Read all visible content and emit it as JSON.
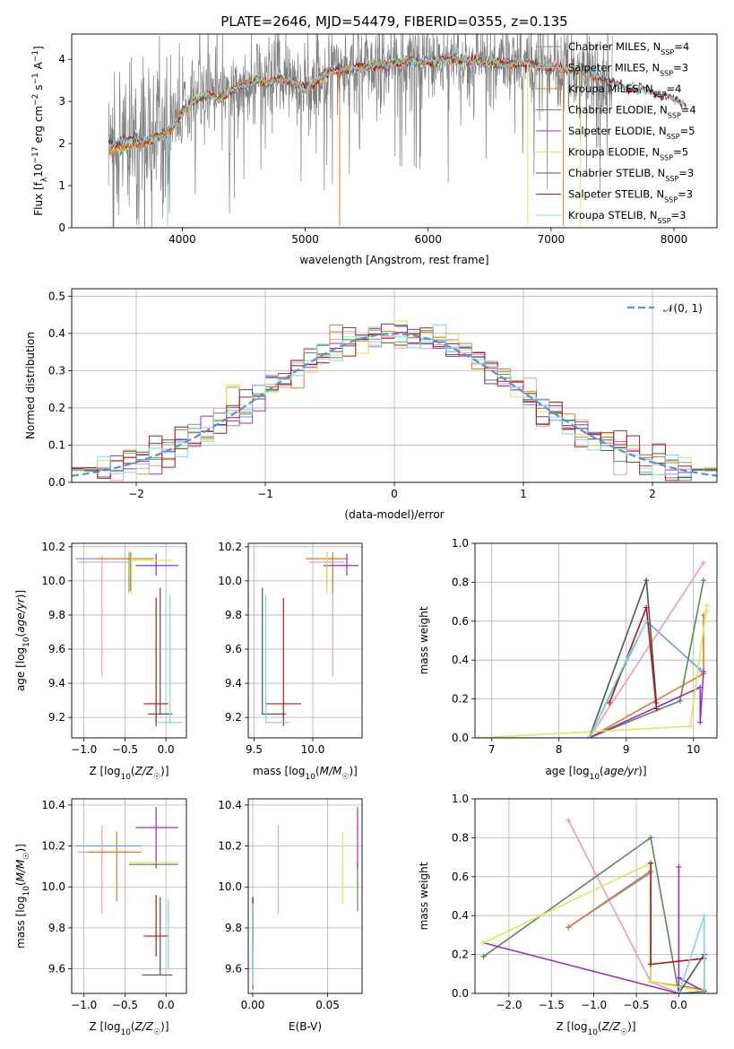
{
  "figure_title": "PLATE=2646, MJD=54479, FIBERID=0355, z=0.135",
  "colors": {
    "Chabrier MILES": "#6f9be0",
    "Salpeter MILES": "#f09bb0",
    "Kroupa MILES": "#e07b28",
    "Chabrier ELODIE": "#5a8a5a",
    "Salpeter ELODIE": "#9b2fbf",
    "Kroupa ELODIE": "#d4ec5c",
    "Chabrier STELIB": "#555555",
    "Salpeter STELIB": "#b01818",
    "Kroupa STELIB": "#7fd8e0",
    "gray_spectrum": "#808080",
    "gaussian": "#5b8fd6",
    "grid": "#b0b0b0"
  },
  "chart_data": [
    {
      "id": "spectrum",
      "type": "line",
      "xlabel": "wavelength [Angstrom, rest frame]",
      "ylabel": "Flux [f_λ 10^-17 erg cm^-2 s^-1 A^-1]",
      "xlim": [
        3100,
        8350
      ],
      "ylim": [
        0,
        4.6
      ],
      "xticks": [
        "4000",
        "5000",
        "6000",
        "7000",
        "8000"
      ],
      "yticks": [
        "0",
        "1",
        "2",
        "3",
        "4"
      ],
      "grid": false,
      "legend": "upper right",
      "legend_entries": [
        {
          "label": "Chabrier MILES, N",
          "sub": "SSP",
          "tail": "=4"
        },
        {
          "label": "Salpeter MILES, N",
          "sub": "SSP",
          "tail": "=3"
        },
        {
          "label": "Kroupa MILES, N",
          "sub": "SSP",
          "tail": "=4"
        },
        {
          "label": "Chabrier ELODIE, N",
          "sub": "SSP",
          "tail": "=4"
        },
        {
          "label": "Salpeter ELODIE, N",
          "sub": "SSP",
          "tail": "=5"
        },
        {
          "label": "Kroupa ELODIE, N",
          "sub": "SSP",
          "tail": "=5"
        },
        {
          "label": "Chabrier STELIB, N",
          "sub": "SSP",
          "tail": "=3"
        },
        {
          "label": "Salpeter STELIB, N",
          "sub": "SSP",
          "tail": "=3"
        },
        {
          "label": "Kroupa STELIB, N",
          "sub": "SSP",
          "tail": "=3"
        }
      ],
      "continuum": {
        "x": [
          3400,
          3500,
          3600,
          3700,
          3800,
          3900,
          4000,
          4100,
          4200,
          4300,
          4400,
          4500,
          4600,
          4700,
          4800,
          4900,
          5000,
          5200,
          5400,
          5600,
          5800,
          6000,
          6200,
          6400,
          6600,
          6800,
          7000,
          7200,
          7400,
          7600,
          7800,
          8000,
          8100
        ],
        "y": [
          1.85,
          1.9,
          1.95,
          2.05,
          2.15,
          2.3,
          2.75,
          3.05,
          3.15,
          3.05,
          3.25,
          3.4,
          3.5,
          3.45,
          3.55,
          3.45,
          3.3,
          3.7,
          3.8,
          3.85,
          3.95,
          3.95,
          4.0,
          3.95,
          3.9,
          3.9,
          3.8,
          3.75,
          3.55,
          3.35,
          3.25,
          3.05,
          2.9
        ]
      },
      "model_range": [
        3400,
        7400
      ],
      "model_wavelength_cut": {
        "MILES": 7400,
        "ELODIE": 6800,
        "STELIB": 8100
      }
    },
    {
      "id": "residuals",
      "type": "step histogram",
      "xlabel": "(data-model)/error",
      "ylabel": "Normed distribution",
      "xlim": [
        -2.5,
        2.5
      ],
      "ylim": [
        0,
        0.52
      ],
      "xticks": [
        "−2",
        "−1",
        "0",
        "1",
        "2"
      ],
      "yticks": [
        "0.0",
        "0.1",
        "0.2",
        "0.3",
        "0.4",
        "0.5"
      ],
      "grid": true,
      "legend": "upper right",
      "legend_label": "𝒩(0, 1)",
      "bin_width": 0.1,
      "series_note": "nine step histograms, one per model; normal density overlay"
    },
    {
      "id": "age_vs_Z",
      "type": "errorbar",
      "xlabel": "Z [log₁₀(Z/Z☉)]",
      "ylabel": "age  [log₁₀(age/yr)]",
      "xlim": [
        -1.15,
        0.25
      ],
      "ylim": [
        9.08,
        10.22
      ],
      "xticks": [
        "−1.0",
        "−0.5",
        "0.0"
      ],
      "yticks": [
        "9.2",
        "9.4",
        "9.6",
        "9.8",
        "10.0",
        "10.2"
      ],
      "grid": true,
      "points": [
        {
          "model": "Chabrier MILES",
          "x": -0.45,
          "y": 10.13,
          "xerr": [
            0.65,
            0.05
          ],
          "yerr": [
            0.0,
            0.0
          ]
        },
        {
          "model": "Salpeter MILES",
          "x": -0.78,
          "y": 10.11,
          "xerr": [
            0.3,
            0.32
          ],
          "yerr": [
            0.67,
            0.04
          ]
        },
        {
          "model": "Kroupa MILES",
          "x": -0.45,
          "y": 10.13,
          "xerr": [
            0.4,
            0.3
          ],
          "yerr": [
            0.2,
            0.04
          ]
        },
        {
          "model": "Chabrier ELODIE",
          "x": -0.43,
          "y": 10.09,
          "xerr": [
            0.0,
            0.0
          ],
          "yerr": [
            0.15,
            0.08
          ]
        },
        {
          "model": "Salpeter ELODIE",
          "x": -0.12,
          "y": 10.09,
          "xerr": [
            0.25,
            0.27
          ],
          "yerr": [
            0.06,
            0.07
          ]
        },
        {
          "model": "Kroupa ELODIE",
          "x": -0.42,
          "y": 10.12,
          "xerr": [
            0.0,
            0.5
          ],
          "yerr": [
            0.2,
            0.05
          ]
        },
        {
          "model": "Chabrier STELIB",
          "x": -0.07,
          "y": 9.22,
          "xerr": [
            0.15,
            0.15
          ],
          "yerr": [
            0.0,
            0.74
          ]
        },
        {
          "model": "Salpeter STELIB",
          "x": -0.12,
          "y": 9.28,
          "xerr": [
            0.15,
            0.15
          ],
          "yerr": [
            0.13,
            0.62
          ]
        },
        {
          "model": "Kroupa STELIB",
          "x": 0.05,
          "y": 9.17,
          "xerr": [
            0.15,
            0.15
          ],
          "yerr": [
            0.0,
            0.75
          ]
        }
      ]
    },
    {
      "id": "age_vs_mass",
      "type": "errorbar",
      "xlabel": "mass [log₁₀(M/M☉)]",
      "ylabel": "",
      "xlim": [
        9.45,
        10.42
      ],
      "ylim": [
        9.08,
        10.22
      ],
      "xticks": [
        "9.5",
        "10.0"
      ],
      "yticks": [
        "9.2",
        "9.4",
        "9.6",
        "9.8",
        "10.0",
        "10.2"
      ],
      "grid": true,
      "points": [
        {
          "model": "Chabrier MILES",
          "x": 10.2,
          "y": 10.13,
          "xerr": [
            0.1,
            0.1
          ],
          "yerr": [
            0.0,
            0.0
          ]
        },
        {
          "model": "Salpeter MILES",
          "x": 10.17,
          "y": 10.11,
          "xerr": [
            0.2,
            0.1
          ],
          "yerr": [
            0.67,
            0.04
          ]
        },
        {
          "model": "Kroupa MILES",
          "x": 10.17,
          "y": 10.13,
          "xerr": [
            0.23,
            0.1
          ],
          "yerr": [
            0.2,
            0.04
          ]
        },
        {
          "model": "Chabrier ELODIE",
          "x": 10.12,
          "y": 10.09,
          "xerr": [
            0.0,
            0.0
          ],
          "yerr": [
            0.15,
            0.08
          ]
        },
        {
          "model": "Salpeter ELODIE",
          "x": 10.29,
          "y": 10.09,
          "xerr": [
            0.2,
            0.1
          ],
          "yerr": [
            0.06,
            0.07
          ]
        },
        {
          "model": "Kroupa ELODIE",
          "x": 10.12,
          "y": 10.12,
          "xerr": [
            0.0,
            0.0
          ],
          "yerr": [
            0.2,
            0.05
          ]
        },
        {
          "model": "Chabrier STELIB",
          "x": 9.57,
          "y": 9.22,
          "xerr": [
            0.0,
            0.2
          ],
          "yerr": [
            0.0,
            0.74
          ]
        },
        {
          "model": "Salpeter STELIB",
          "x": 9.75,
          "y": 9.28,
          "xerr": [
            0.15,
            0.15
          ],
          "yerr": [
            0.13,
            0.62
          ]
        },
        {
          "model": "Kroupa STELIB",
          "x": 9.6,
          "y": 9.17,
          "xerr": [
            0.0,
            0.2
          ],
          "yerr": [
            0.0,
            0.75
          ]
        }
      ]
    },
    {
      "id": "mw_vs_age",
      "type": "line",
      "xlabel": "age  [log₁₀(age/yr)]",
      "ylabel": "mass weight",
      "xlim": [
        6.75,
        10.35
      ],
      "ylim": [
        0,
        1.0
      ],
      "xticks": [
        "7",
        "8",
        "9",
        "10"
      ],
      "yticks": [
        "0.0",
        "0.2",
        "0.4",
        "0.6",
        "0.8",
        "1.0"
      ],
      "grid": true,
      "series": [
        {
          "model": "Chabrier MILES",
          "x": [
            8.45,
            9.3,
            10.1
          ],
          "y": [
            0.0,
            0.6,
            0.35
          ]
        },
        {
          "model": "Salpeter MILES",
          "x": [
            6.8,
            8.45,
            10.15
          ],
          "y": [
            0.0,
            0.0,
            0.9
          ]
        },
        {
          "model": "Kroupa MILES",
          "x": [
            8.45,
            10.15,
            10.15
          ],
          "y": [
            0.0,
            0.33,
            0.63
          ]
        },
        {
          "model": "Chabrier ELODIE",
          "x": [
            8.45,
            9.8,
            10.15
          ],
          "y": [
            0.0,
            0.19,
            0.81
          ]
        },
        {
          "model": "Salpeter ELODIE",
          "x": [
            8.45,
            10.1,
            10.1,
            10.15
          ],
          "y": [
            0.0,
            0.26,
            0.08,
            0.34
          ]
        },
        {
          "model": "Kroupa ELODIE",
          "x": [
            6.8,
            9.95,
            10.2,
            10.2
          ],
          "y": [
            0.0,
            0.06,
            0.68,
            0.65
          ]
        },
        {
          "model": "Chabrier STELIB",
          "x": [
            8.45,
            9.3,
            9.45
          ],
          "y": [
            0.0,
            0.81,
            0.18
          ]
        },
        {
          "model": "Salpeter STELIB",
          "x": [
            8.75,
            9.3,
            9.45
          ],
          "y": [
            0.18,
            0.67,
            0.15
          ]
        },
        {
          "model": "Kroupa STELIB",
          "x": [
            8.45,
            9.0,
            9.3
          ],
          "y": [
            0.0,
            0.4,
            0.6
          ]
        }
      ]
    },
    {
      "id": "mass_vs_Z",
      "type": "errorbar",
      "xlabel": "Z [log₁₀(Z/Z☉)]",
      "ylabel": "mass [log₁₀(M/M☉)]",
      "xlim": [
        -1.15,
        0.25
      ],
      "ylim": [
        9.48,
        10.43
      ],
      "xticks": [
        "−1.0",
        "−0.5",
        "0.0"
      ],
      "yticks": [
        "9.6",
        "9.8",
        "10.0",
        "10.2",
        "10.4"
      ],
      "grid": true,
      "points": [
        {
          "model": "Chabrier MILES",
          "x": -0.6,
          "y": 10.2,
          "xerr": [
            0.5,
            0.3
          ],
          "yerr": [
            0.0,
            0.0
          ]
        },
        {
          "model": "Salpeter MILES",
          "x": -0.78,
          "y": 10.17,
          "xerr": [
            0.3,
            0.32
          ],
          "yerr": [
            0.3,
            0.13
          ]
        },
        {
          "model": "Kroupa MILES",
          "x": -0.6,
          "y": 10.17,
          "xerr": [
            0.35,
            0.3
          ],
          "yerr": [
            0.24,
            0.1
          ]
        },
        {
          "model": "Chabrier ELODIE",
          "x": -0.15,
          "y": 10.11,
          "xerr": [
            0.3,
            0.3
          ],
          "yerr": [
            0.0,
            0.0
          ]
        },
        {
          "model": "Salpeter ELODIE",
          "x": -0.12,
          "y": 10.29,
          "xerr": [
            0.25,
            0.27
          ],
          "yerr": [
            0.2,
            0.1
          ]
        },
        {
          "model": "Kroupa ELODIE",
          "x": -0.15,
          "y": 10.12,
          "xerr": [
            0.3,
            0.3
          ],
          "yerr": [
            0.0,
            0.0
          ]
        },
        {
          "model": "Chabrier STELIB",
          "x": -0.07,
          "y": 9.57,
          "xerr": [
            0.22,
            0.15
          ],
          "yerr": [
            0.0,
            0.38
          ]
        },
        {
          "model": "Salpeter STELIB",
          "x": -0.12,
          "y": 9.76,
          "xerr": [
            0.15,
            0.15
          ],
          "yerr": [
            0.1,
            0.2
          ]
        },
        {
          "model": "Kroupa STELIB",
          "x": 0.03,
          "y": 9.6,
          "xerr": [
            0.0,
            0.0
          ],
          "yerr": [
            0.0,
            0.34
          ]
        }
      ]
    },
    {
      "id": "mass_vs_ebv",
      "type": "errorbar",
      "xlabel": "E(B-V)",
      "ylabel": "",
      "xlim": [
        -0.003,
        0.073
      ],
      "ylim": [
        9.48,
        10.43
      ],
      "xticks": [
        "0.00",
        "0.05"
      ],
      "yticks": [
        "9.6",
        "9.8",
        "10.0",
        "10.2",
        "10.4"
      ],
      "grid": true,
      "points": [
        {
          "model": "Chabrier MILES",
          "x": 0.0,
          "y": 9.7,
          "xerr": [
            0.0,
            0.0
          ],
          "yerr": [
            0.15,
            0.25
          ]
        },
        {
          "model": "Salpeter MILES",
          "x": 0.017,
          "y": 10.17,
          "xerr": [
            0.0,
            0.0
          ],
          "yerr": [
            0.3,
            0.13
          ]
        },
        {
          "model": "Kroupa MILES",
          "x": 0.0,
          "y": 9.8,
          "xerr": [
            0.0,
            0.0
          ],
          "yerr": [
            0.2,
            0.15
          ]
        },
        {
          "model": "Chabrier ELODIE",
          "x": 0.07,
          "y": 10.11,
          "xerr": [
            0.0,
            0.0
          ],
          "yerr": [
            0.23,
            0.0
          ]
        },
        {
          "model": "Salpeter ELODIE",
          "x": 0.07,
          "y": 10.29,
          "xerr": [
            0.0,
            0.0
          ],
          "yerr": [
            0.2,
            0.1
          ]
        },
        {
          "model": "Kroupa ELODIE",
          "x": 0.06,
          "y": 10.12,
          "xerr": [
            0.0,
            0.0
          ],
          "yerr": [
            0.2,
            0.15
          ]
        },
        {
          "model": "Chabrier STELIB",
          "x": 0.0,
          "y": 9.7,
          "xerr": [
            0.0,
            0.0
          ],
          "yerr": [
            0.2,
            0.25
          ]
        },
        {
          "model": "Salpeter STELIB",
          "x": 0.0,
          "y": 9.75,
          "xerr": [
            0.0,
            0.0
          ],
          "yerr": [
            0.05,
            0.2
          ]
        },
        {
          "model": "Kroupa STELIB",
          "x": 0.0,
          "y": 9.62,
          "xerr": [
            0.0,
            0.0
          ],
          "yerr": [
            0.1,
            0.3
          ]
        }
      ]
    },
    {
      "id": "mw_vs_Z",
      "type": "line",
      "xlabel": "Z [log₁₀(Z/Z☉)]",
      "ylabel": "mass weight",
      "xlim": [
        -2.4,
        0.45
      ],
      "ylim": [
        0,
        1.0
      ],
      "xticks": [
        "−2.0",
        "−1.5",
        "−1.0",
        "−0.5",
        "0.0"
      ],
      "yticks": [
        "0.0",
        "0.2",
        "0.4",
        "0.6",
        "0.8",
        "1.0"
      ],
      "grid": true,
      "series": [
        {
          "model": "Chabrier MILES",
          "x": [
            -1.3,
            -0.33,
            -0.33,
            0.3
          ],
          "y": [
            0.34,
            0.62,
            0.06,
            0.02
          ]
        },
        {
          "model": "Salpeter MILES",
          "x": [
            -1.3,
            -0.33,
            0.0,
            0.3
          ],
          "y": [
            0.89,
            0.06,
            0.0,
            0.0
          ]
        },
        {
          "model": "Kroupa MILES",
          "x": [
            -1.3,
            -0.33,
            -0.33,
            0.3
          ],
          "y": [
            0.34,
            0.63,
            0.06,
            0.02
          ]
        },
        {
          "model": "Chabrier ELODIE",
          "x": [
            -2.3,
            -0.33,
            0.0,
            0.3
          ],
          "y": [
            0.19,
            0.8,
            0.0,
            0.01
          ]
        },
        {
          "model": "Salpeter ELODIE",
          "x": [
            -2.3,
            0.0,
            0.0,
            0.0,
            0.3
          ],
          "y": [
            0.26,
            0.0,
            0.65,
            0.08,
            0.01
          ]
        },
        {
          "model": "Kroupa ELODIE",
          "x": [
            -2.3,
            -0.33,
            -0.33,
            0.3
          ],
          "y": [
            0.26,
            0.67,
            0.06,
            0.01
          ]
        },
        {
          "model": "Chabrier STELIB",
          "x": [
            0.0,
            0.3,
            0.3
          ],
          "y": [
            0.0,
            0.2,
            0.01
          ]
        },
        {
          "model": "Salpeter STELIB",
          "x": [
            -0.33,
            -0.33,
            0.3
          ],
          "y": [
            0.67,
            0.15,
            0.18
          ]
        },
        {
          "model": "Kroupa STELIB",
          "x": [
            0.0,
            0.3,
            0.3
          ],
          "y": [
            0.0,
            0.4,
            0.02
          ]
        }
      ]
    }
  ]
}
